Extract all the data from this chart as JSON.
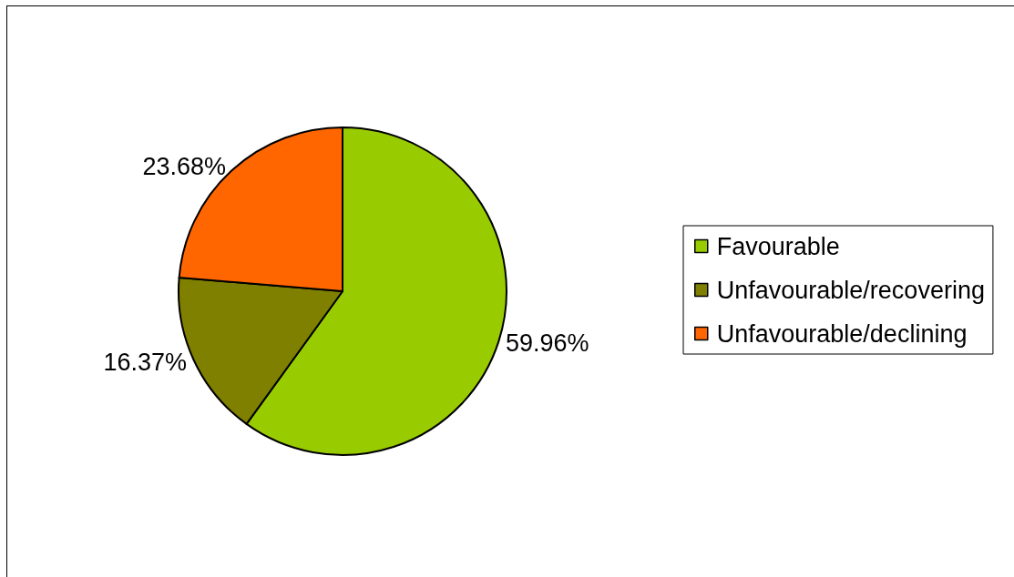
{
  "chart_data": {
    "type": "pie",
    "categories": [
      "Favourable",
      "Unfavourable/recovering",
      "Unfavourable/declining"
    ],
    "values": [
      59.96,
      16.37,
      23.68
    ],
    "value_labels": [
      "59.96%",
      "16.37%",
      "23.68%"
    ],
    "colors": [
      "#99cc00",
      "#808000",
      "#ff6600"
    ],
    "legend": "right"
  }
}
